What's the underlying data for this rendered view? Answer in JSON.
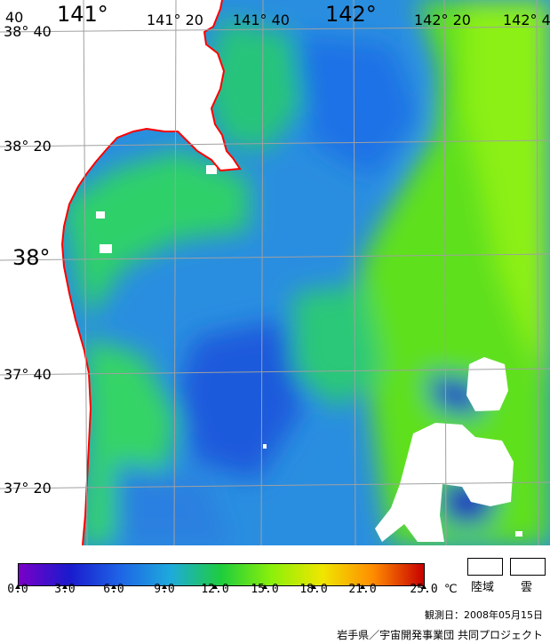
{
  "map": {
    "lon_labels": [
      "141°",
      "141° 20",
      "141° 40",
      "142°",
      "142° 20",
      "142° 4"
    ],
    "lat_labels": [
      "38° 40",
      "38° 20",
      "38°",
      "37° 40",
      "37° 20"
    ],
    "corner_label": "40",
    "coast_color": "#ff0000",
    "grid_color": "#a0a0a0",
    "land_color": "#ffffff",
    "cloud_color": "#ffffff"
  },
  "colorbar": {
    "ticks": [
      "0.0",
      "3.0",
      "6.0",
      "9.0",
      "12.0",
      "15.0",
      "18.0",
      "21.0",
      "25.0"
    ],
    "unit": "℃",
    "stops": [
      "#7a00c8",
      "#1a1acd",
      "#1e64e6",
      "#1eaadc",
      "#1ecd3c",
      "#8cf00a",
      "#f0e600",
      "#ff8c00",
      "#c80000"
    ]
  },
  "legend": {
    "land_label": "陸域",
    "cloud_label": "雲"
  },
  "observation_date": "観測日：2008年05月15日",
  "credit": "岩手県／宇宙開発事業団  共同プロジェクト"
}
